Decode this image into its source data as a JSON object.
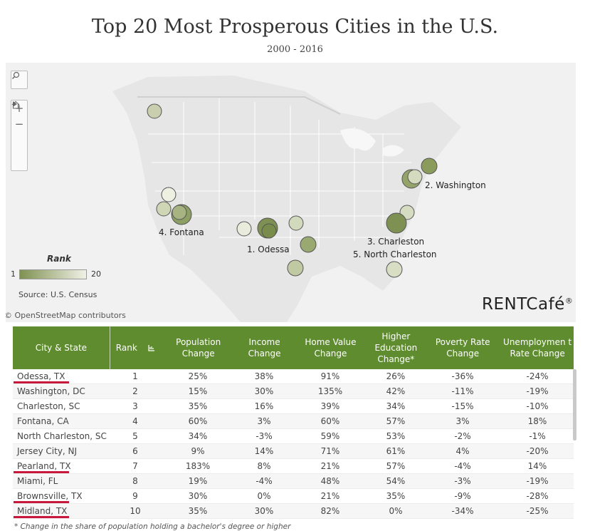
{
  "title": "Top 20 Most Prosperous Cities in the U.S.",
  "subtitle": "2000 - 2016",
  "map": {
    "controls": {
      "search_icon": "search-icon",
      "zoom_in": "+",
      "zoom_out": "−",
      "home_icon": "home-icon",
      "play_icon": "play-icon"
    },
    "labels": [
      "2. Washington",
      "4. Fontana",
      "1. Odessa",
      "3. Charleston",
      "5. North Charleston"
    ],
    "legend": {
      "title": "Rank",
      "min": "1",
      "max": "20",
      "color_low": "#7f9152",
      "color_high": "#f0f1e6"
    },
    "source": "Source: U.S. Census",
    "attribution": "© OpenStreetMap contributors",
    "brand": "RENTCafé",
    "brand_mark": "®"
  },
  "table": {
    "headers": [
      "City & State",
      "Rank",
      "Population Change",
      "Income Change",
      "Home Value Change",
      "Higher Education Change*",
      "Poverty Rate Change",
      "Unemploymen t Rate Change"
    ],
    "sort_icon": "sort-icon",
    "rows": [
      [
        "Odessa, TX",
        "1",
        "25%",
        "38%",
        "91%",
        "26%",
        "-36%",
        "-24%"
      ],
      [
        "Washington, DC",
        "2",
        "15%",
        "30%",
        "135%",
        "42%",
        "-11%",
        "-19%"
      ],
      [
        "Charleston, SC",
        "3",
        "35%",
        "16%",
        "39%",
        "34%",
        "-15%",
        "-10%"
      ],
      [
        "Fontana, CA",
        "4",
        "60%",
        "3%",
        "60%",
        "57%",
        "3%",
        "18%"
      ],
      [
        "North Charleston, SC",
        "5",
        "34%",
        "-3%",
        "59%",
        "53%",
        "-2%",
        "-1%"
      ],
      [
        "Jersey City, NJ",
        "6",
        "9%",
        "14%",
        "71%",
        "61%",
        "4%",
        "-20%"
      ],
      [
        "Pearland, TX",
        "7",
        "183%",
        "8%",
        "21%",
        "57%",
        "-4%",
        "14%"
      ],
      [
        "Miami, FL",
        "8",
        "19%",
        "-4%",
        "48%",
        "54%",
        "-3%",
        "-19%"
      ],
      [
        "Brownsville, TX",
        "9",
        "30%",
        "0%",
        "21%",
        "35%",
        "-9%",
        "-28%"
      ],
      [
        "Midland, TX",
        "10",
        "35%",
        "30%",
        "82%",
        "0%",
        "-34%",
        "-25%"
      ]
    ],
    "highlighted_rows": [
      0,
      6,
      8,
      9
    ],
    "highlight_color": "#c8193c",
    "header_color": "#5e8c2f"
  },
  "footnote": "* Change in the share of population holding a bachelor's degree or higher"
}
